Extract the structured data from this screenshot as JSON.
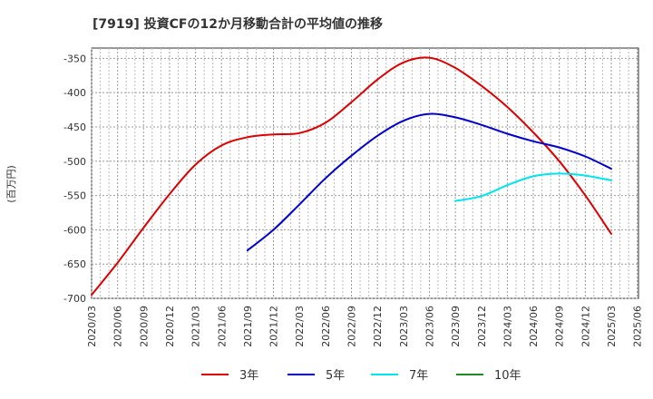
{
  "chart_data": {
    "type": "line",
    "title": "[7919]  投資CFの12か月移動合計の平均値の推移",
    "ylabel": "(百万円)",
    "ylim": [
      -700,
      -335
    ],
    "yticks": [
      -350,
      -400,
      -450,
      -500,
      -550,
      -600,
      -650,
      -700
    ],
    "x": [
      "2020/03",
      "2020/06",
      "2020/09",
      "2020/12",
      "2021/03",
      "2021/06",
      "2021/09",
      "2021/12",
      "2022/03",
      "2022/06",
      "2022/09",
      "2022/12",
      "2023/03",
      "2023/06",
      "2023/09",
      "2023/12",
      "2024/03",
      "2024/06",
      "2024/09",
      "2024/12",
      "2025/03",
      "2025/06"
    ],
    "grid": true,
    "legend_position": "bottom",
    "series": [
      {
        "name": "3年",
        "color": "#dd0000",
        "points": [
          [
            "2020/03",
            -695
          ],
          [
            "2020/06",
            -648
          ],
          [
            "2020/09",
            -597
          ],
          [
            "2020/12",
            -548
          ],
          [
            "2021/03",
            -505
          ],
          [
            "2021/06",
            -477
          ],
          [
            "2021/09",
            -465
          ],
          [
            "2021/12",
            -461
          ],
          [
            "2022/03",
            -459
          ],
          [
            "2022/06",
            -444
          ],
          [
            "2022/09",
            -414
          ],
          [
            "2022/12",
            -381
          ],
          [
            "2023/03",
            -356
          ],
          [
            "2023/06",
            -349
          ],
          [
            "2023/09",
            -364
          ],
          [
            "2023/12",
            -390
          ],
          [
            "2024/03",
            -421
          ],
          [
            "2024/06",
            -458
          ],
          [
            "2024/09",
            -500
          ],
          [
            "2024/12",
            -550
          ],
          [
            "2025/03",
            -606
          ]
        ]
      },
      {
        "name": "5年",
        "color": "#0000cc",
        "points": [
          [
            "2021/09",
            -630
          ],
          [
            "2021/12",
            -600
          ],
          [
            "2022/03",
            -563
          ],
          [
            "2022/06",
            -525
          ],
          [
            "2022/09",
            -492
          ],
          [
            "2022/12",
            -463
          ],
          [
            "2023/03",
            -441
          ],
          [
            "2023/06",
            -431
          ],
          [
            "2023/09",
            -436
          ],
          [
            "2023/12",
            -447
          ],
          [
            "2024/03",
            -460
          ],
          [
            "2024/06",
            -471
          ],
          [
            "2024/09",
            -480
          ],
          [
            "2024/12",
            -493
          ],
          [
            "2025/03",
            -511
          ]
        ]
      },
      {
        "name": "7年",
        "color": "#00e5ee",
        "points": [
          [
            "2023/09",
            -558
          ],
          [
            "2023/12",
            -551
          ],
          [
            "2024/03",
            -535
          ],
          [
            "2024/06",
            -522
          ],
          [
            "2024/09",
            -518
          ],
          [
            "2024/12",
            -521
          ],
          [
            "2025/03",
            -528
          ]
        ]
      },
      {
        "name": "10年",
        "color": "#228822",
        "points": []
      }
    ]
  }
}
